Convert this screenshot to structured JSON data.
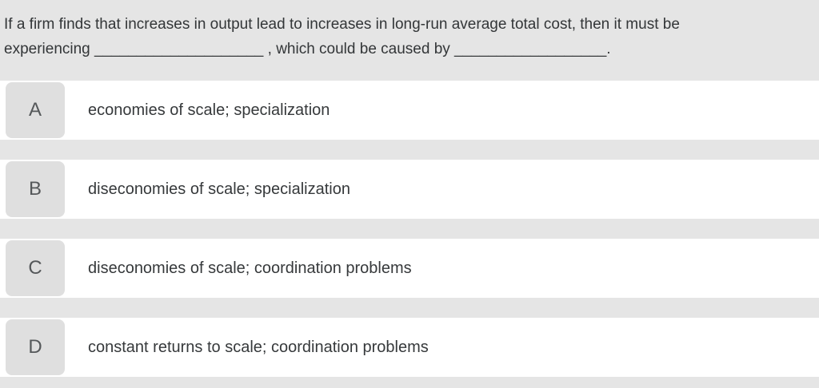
{
  "colors": {
    "page_background": "#e5e5e5",
    "row_background": "#ffffff",
    "badge_background": "#dfdfdf",
    "question_text": "#333638",
    "option_text": "#36393b"
  },
  "question": {
    "line1": "If a firm finds that increases in output lead to increases in long-run average total cost, then it must be",
    "line2": "experiencing ____________________ , which could be caused by __________________."
  },
  "options": [
    {
      "letter": "A",
      "text": "economies of scale; specialization"
    },
    {
      "letter": "B",
      "text": "diseconomies of scale; specialization"
    },
    {
      "letter": "C",
      "text": "diseconomies of scale; coordination problems"
    },
    {
      "letter": "D",
      "text": "constant returns to scale; coordination problems"
    }
  ]
}
